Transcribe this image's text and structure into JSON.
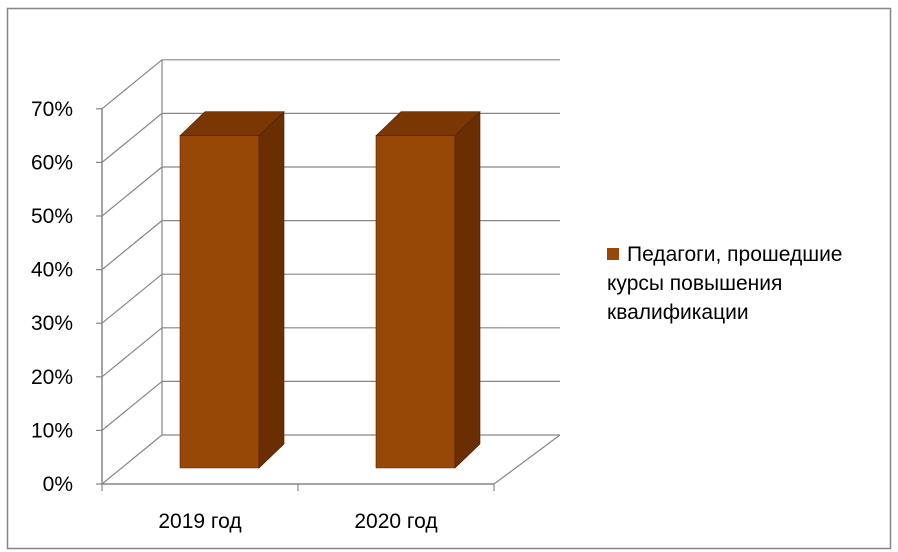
{
  "chart_data": {
    "type": "bar",
    "style": "3d-column",
    "categories": [
      "2019 год",
      "2020 год"
    ],
    "series": [
      {
        "name": "Педагоги, прошедшие курсы повышения квалификации",
        "values": [
          62,
          62
        ],
        "color": "#974706"
      }
    ],
    "y_ticks": [
      "0%",
      "10%",
      "20%",
      "30%",
      "40%",
      "50%",
      "60%",
      "70%"
    ],
    "ylim": [
      0,
      70
    ],
    "y_unit": "%",
    "grid": true,
    "legend_position": "right",
    "title": "",
    "xlabel": "",
    "ylabel": ""
  },
  "colors": {
    "bar_front": "#974706",
    "bar_side": "#6B2E02",
    "bar_top": "#7A3603",
    "gridline": "#868686",
    "frame": "#868686"
  }
}
